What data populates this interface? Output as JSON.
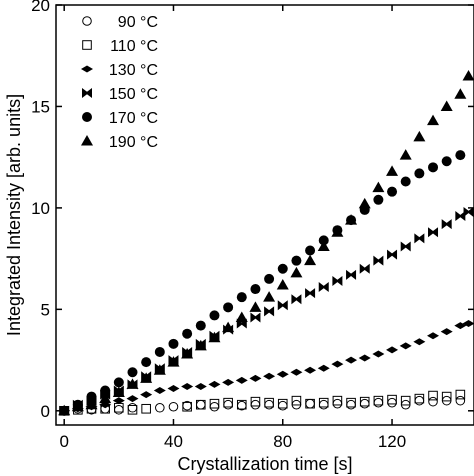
{
  "chart_data": {
    "type": "scatter",
    "title": "",
    "xlabel": "Crystallization time [s]",
    "ylabel": "Integrated Intensity [arb. units]",
    "xlim": [
      -3,
      150
    ],
    "ylim": [
      -0.7,
      20
    ],
    "xticks": [
      0,
      40,
      80,
      120
    ],
    "yticks": [
      0,
      5,
      10,
      15,
      20
    ],
    "grid": false,
    "legend": "top-left",
    "series": [
      {
        "name": "90 °C",
        "marker": "open-circle",
        "points": [
          [
            0,
            0
          ],
          [
            5,
            0.1
          ],
          [
            10,
            0.05
          ],
          [
            15,
            0.1
          ],
          [
            20,
            0.05
          ],
          [
            25,
            0.15
          ],
          [
            35,
            0.15
          ],
          [
            40,
            0.2
          ],
          [
            45,
            0.25
          ],
          [
            50,
            0.3
          ],
          [
            55,
            0.2
          ],
          [
            60,
            0.3
          ],
          [
            65,
            0.25
          ],
          [
            70,
            0.3
          ],
          [
            75,
            0.3
          ],
          [
            80,
            0.25
          ],
          [
            85,
            0.3
          ],
          [
            90,
            0.35
          ],
          [
            95,
            0.3
          ],
          [
            100,
            0.35
          ],
          [
            105,
            0.3
          ],
          [
            110,
            0.35
          ],
          [
            115,
            0.4
          ],
          [
            120,
            0.4
          ],
          [
            125,
            0.3
          ],
          [
            130,
            0.5
          ],
          [
            135,
            0.45
          ],
          [
            140,
            0.5
          ],
          [
            145,
            0.5
          ]
        ]
      },
      {
        "name": "110 °C",
        "marker": "open-square",
        "points": [
          [
            0,
            0
          ],
          [
            5,
            0.05
          ],
          [
            10,
            0.1
          ],
          [
            15,
            0.1
          ],
          [
            20,
            0.15
          ],
          [
            25,
            0.05
          ],
          [
            30,
            0.1
          ],
          [
            45,
            0.2
          ],
          [
            50,
            0.3
          ],
          [
            55,
            0.35
          ],
          [
            60,
            0.4
          ],
          [
            65,
            0.3
          ],
          [
            70,
            0.45
          ],
          [
            75,
            0.4
          ],
          [
            80,
            0.35
          ],
          [
            85,
            0.5
          ],
          [
            90,
            0.35
          ],
          [
            95,
            0.4
          ],
          [
            100,
            0.5
          ],
          [
            105,
            0.4
          ],
          [
            110,
            0.45
          ],
          [
            115,
            0.5
          ],
          [
            120,
            0.55
          ],
          [
            125,
            0.5
          ],
          [
            130,
            0.6
          ],
          [
            135,
            0.75
          ],
          [
            140,
            0.7
          ],
          [
            145,
            0.8
          ]
        ]
      },
      {
        "name": "130 °C",
        "marker": "filled-diamond",
        "points": [
          [
            0,
            0
          ],
          [
            5,
            0.1
          ],
          [
            10,
            0.2
          ],
          [
            15,
            0.3
          ],
          [
            20,
            0.5
          ],
          [
            25,
            0.6
          ],
          [
            30,
            0.8
          ],
          [
            35,
            1.0
          ],
          [
            40,
            1.1
          ],
          [
            45,
            1.2
          ],
          [
            50,
            1.2
          ],
          [
            55,
            1.3
          ],
          [
            60,
            1.4
          ],
          [
            65,
            1.5
          ],
          [
            70,
            1.6
          ],
          [
            75,
            1.7
          ],
          [
            80,
            1.8
          ],
          [
            85,
            1.9
          ],
          [
            90,
            2.0
          ],
          [
            95,
            2.1
          ],
          [
            100,
            2.3
          ],
          [
            105,
            2.5
          ],
          [
            110,
            2.6
          ],
          [
            115,
            2.8
          ],
          [
            120,
            3.0
          ],
          [
            125,
            3.2
          ],
          [
            130,
            3.4
          ],
          [
            135,
            3.7
          ],
          [
            140,
            3.9
          ],
          [
            145,
            4.2
          ],
          [
            148,
            4.3
          ]
        ]
      },
      {
        "name": "150 °C",
        "marker": "bowtie",
        "points": [
          [
            0,
            0
          ],
          [
            5,
            0.3
          ],
          [
            10,
            0.5
          ],
          [
            15,
            0.8
          ],
          [
            20,
            1.0
          ],
          [
            25,
            1.3
          ],
          [
            30,
            1.7
          ],
          [
            35,
            2.1
          ],
          [
            40,
            2.5
          ],
          [
            45,
            2.9
          ],
          [
            50,
            3.3
          ],
          [
            55,
            3.7
          ],
          [
            60,
            4.0
          ],
          [
            65,
            4.3
          ],
          [
            70,
            4.6
          ],
          [
            75,
            4.9
          ],
          [
            80,
            5.2
          ],
          [
            85,
            5.5
          ],
          [
            90,
            5.8
          ],
          [
            95,
            6.1
          ],
          [
            100,
            6.4
          ],
          [
            105,
            6.7
          ],
          [
            110,
            7.0
          ],
          [
            115,
            7.4
          ],
          [
            120,
            7.7
          ],
          [
            125,
            8.1
          ],
          [
            130,
            8.5
          ],
          [
            135,
            8.8
          ],
          [
            140,
            9.2
          ],
          [
            145,
            9.6
          ],
          [
            148,
            9.8
          ]
        ]
      },
      {
        "name": "170 °C",
        "marker": "filled-circle",
        "points": [
          [
            0,
            0
          ],
          [
            5,
            0.3
          ],
          [
            10,
            0.7
          ],
          [
            15,
            1.0
          ],
          [
            20,
            1.4
          ],
          [
            25,
            1.9
          ],
          [
            30,
            2.4
          ],
          [
            35,
            2.9
          ],
          [
            40,
            3.3
          ],
          [
            45,
            3.8
          ],
          [
            50,
            4.2
          ],
          [
            55,
            4.7
          ],
          [
            60,
            5.1
          ],
          [
            65,
            5.6
          ],
          [
            70,
            6.0
          ],
          [
            75,
            6.5
          ],
          [
            80,
            7.0
          ],
          [
            85,
            7.4
          ],
          [
            90,
            7.9
          ],
          [
            95,
            8.4
          ],
          [
            100,
            8.9
          ],
          [
            105,
            9.4
          ],
          [
            110,
            9.9
          ],
          [
            115,
            10.4
          ],
          [
            120,
            10.8
          ],
          [
            125,
            11.3
          ],
          [
            130,
            11.7
          ],
          [
            135,
            12.0
          ],
          [
            140,
            12.3
          ],
          [
            145,
            12.6
          ]
        ]
      },
      {
        "name": "190 °C",
        "marker": "filled-triangle",
        "points": [
          [
            0,
            0
          ],
          [
            5,
            0.2
          ],
          [
            10,
            0.3
          ],
          [
            15,
            0.6
          ],
          [
            20,
            0.9
          ],
          [
            25,
            1.3
          ],
          [
            30,
            1.6
          ],
          [
            35,
            2.0
          ],
          [
            40,
            2.4
          ],
          [
            45,
            2.8
          ],
          [
            50,
            3.2
          ],
          [
            55,
            3.6
          ],
          [
            60,
            4.1
          ],
          [
            65,
            4.6
          ],
          [
            70,
            5.1
          ],
          [
            75,
            5.6
          ],
          [
            80,
            6.2
          ],
          [
            85,
            6.8
          ],
          [
            90,
            7.4
          ],
          [
            95,
            8.1
          ],
          [
            100,
            8.8
          ],
          [
            105,
            9.4
          ],
          [
            110,
            10.2
          ],
          [
            115,
            11.0
          ],
          [
            120,
            11.8
          ],
          [
            125,
            12.6
          ],
          [
            130,
            13.5
          ],
          [
            135,
            14.3
          ],
          [
            140,
            15.0
          ],
          [
            145,
            15.6
          ],
          [
            148,
            16.5
          ]
        ]
      }
    ]
  }
}
